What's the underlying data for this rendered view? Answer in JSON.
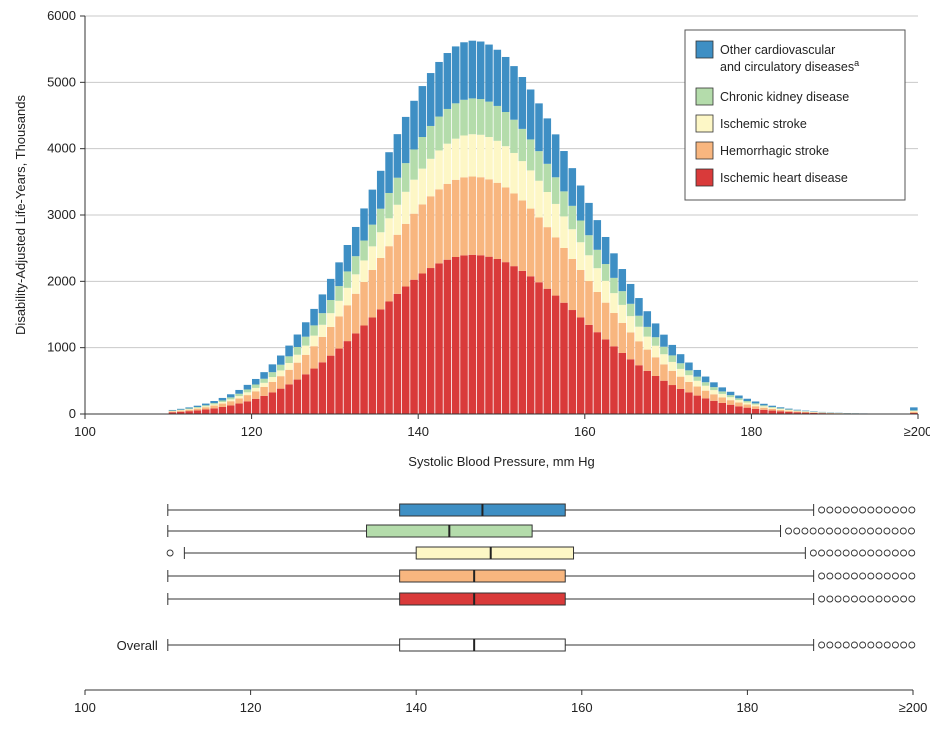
{
  "chart_data": [
    {
      "type": "bar",
      "stacked": true,
      "xlabel": "Systolic Blood Pressure, mm Hg",
      "ylabel": "Disability-Adjusted Life-Years, Thousands",
      "xlim": [
        100,
        200
      ],
      "ylim": [
        0,
        6000
      ],
      "x_ticks": [
        "100",
        "120",
        "140",
        "160",
        "180",
        "≥200"
      ],
      "y_ticks": [
        "0",
        "1000",
        "2000",
        "3000",
        "4000",
        "5000",
        "6000"
      ],
      "grid": "horizontal",
      "legend_placement": "top-right",
      "bins": {
        "start": 110,
        "end": 199,
        "step": 1,
        "last_label": "≥200"
      },
      "series_order_bottom_to_top": [
        "ihd",
        "hem",
        "isch",
        "ckd",
        "other"
      ],
      "series": [
        {
          "key": "ihd",
          "name": "Ischemic heart disease",
          "color": "#d93a3a",
          "peak_x": 146,
          "peak": 2400,
          "sigma_left": 12,
          "sigma_right": 13
        },
        {
          "key": "hem",
          "name": "Hemorrhagic stroke",
          "color": "#f8b67f",
          "peak_x": 146,
          "peak": 1180,
          "sigma_left": 12,
          "sigma_right": 13
        },
        {
          "key": "isch",
          "name": "Ischemic stroke",
          "color": "#fdf7c6",
          "peak_x": 147,
          "peak": 640,
          "sigma_left": 12,
          "sigma_right": 13
        },
        {
          "key": "ckd",
          "name": "Chronic kidney disease",
          "color": "#b4dcab",
          "peak_x": 146,
          "peak": 540,
          "sigma_left": 12,
          "sigma_right": 13
        },
        {
          "key": "other",
          "name": "Other cardiovascular and circulatory diseases",
          "name_line1": "Other cardiovascular",
          "name_line2": "and circulatory diseases",
          "superscript": "a",
          "color": "#3e8fc4",
          "peak_x": 146,
          "peak": 870,
          "sigma_left": 12,
          "sigma_right": 13
        }
      ],
      "last_bin_values": {
        "ihd": 15,
        "hem": 20,
        "isch": 10,
        "ckd": 10,
        "other": 45
      }
    },
    {
      "type": "box",
      "xlim": [
        100,
        200
      ],
      "x_ticks": [
        "100",
        "120",
        "140",
        "160",
        "180",
        "≥200"
      ],
      "boxes": [
        {
          "key": "other",
          "color": "#3e8fc4",
          "whisker_low": 110,
          "q1": 138,
          "median": 148,
          "q3": 158,
          "whisker_high": 188,
          "outliers_low": [],
          "outliers_high_count": 12
        },
        {
          "key": "ckd",
          "color": "#b4dcab",
          "whisker_low": 110,
          "q1": 134,
          "median": 144,
          "q3": 154,
          "whisker_high": 184,
          "outliers_low": [],
          "outliers_high_count": 16
        },
        {
          "key": "isch",
          "color": "#fdf7c6",
          "whisker_low": 112,
          "q1": 140,
          "median": 149,
          "q3": 159,
          "whisker_high": 187,
          "outliers_low": [
            111
          ],
          "outliers_high_count": 13
        },
        {
          "key": "hem",
          "color": "#f8b67f",
          "whisker_low": 110,
          "q1": 138,
          "median": 147,
          "q3": 158,
          "whisker_high": 188,
          "outliers_low": [],
          "outliers_high_count": 12
        },
        {
          "key": "ihd",
          "color": "#d93a3a",
          "whisker_low": 110,
          "q1": 138,
          "median": 147,
          "q3": 158,
          "whisker_high": 188,
          "outliers_low": [],
          "outliers_high_count": 12
        },
        {
          "key": "overall",
          "label": "Overall",
          "color": "#ffffff",
          "whisker_low": 110,
          "q1": 138,
          "median": 147,
          "q3": 158,
          "whisker_high": 188,
          "outliers_low": [],
          "outliers_high_count": 12
        }
      ]
    }
  ]
}
